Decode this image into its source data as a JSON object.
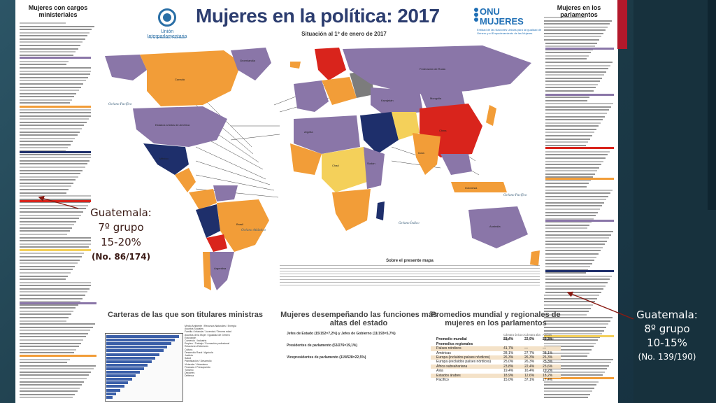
{
  "poster": {
    "title": "Mujeres en la política: 2017",
    "subtitle": "Situación al 1º de enero de 2017",
    "ipu_name": "Unión Interparlamentaria",
    "ipu_sub": "Por la democracia. Para todos.",
    "un_women": "ONU MUJERES",
    "un_women_sub": "Entidad de las Naciones Unidas para la Igualdad de Género y el Empoderamiento de las Mujeres",
    "left_column_title": "Mujeres con cargos ministeriales",
    "right_column_title": "Mujeres en los parlamentos",
    "map_note_title": "Sobre el presente mapa",
    "bottom_left_title": "Carteras de las que son titulares ministras",
    "bottom_mid_title": "Mujeres desempeñando las funciones más altas del estado",
    "bottom_right_title": "Promedios mundial y regionales de mujeres en los parlamentos",
    "heads_of_state": "Jefes de Estado (15/152=7,2%) y Jefes de Gobierno (11/193=5,7%)",
    "speakers": "Presidentes de parlamento (53/276=19,1%)",
    "deputy_speakers": "Vicepresidentes de parlamento (119/528=22,5%)",
    "portfolios": [
      "Medio Ambiente / Recursos Naturales / Energía",
      "Asuntos Sociales",
      "Familia / Infancia / Juventud / Tercera edad",
      "Asuntos de la Mujer / Igualdad de Género",
      "Educación",
      "Comercio / Industria",
      "Empleo / Trabajo / Formación profesional",
      "Relaciones Exteriores",
      "Cultura",
      "Desarrollo Rural / Agrícola",
      "Justicia",
      "Salud",
      "Planificación / Desarrollo",
      "Vivienda / Urbanismo",
      "Finanzas / Presupuesto",
      "Turismo",
      "Deportes",
      "Defensa"
    ],
    "avg_header": [
      "",
      "Cámara única o baja",
      "Cámara alta",
      "Ambas cámaras"
    ],
    "avg_rows": [
      {
        "name": "Promedio mundial",
        "a": "23,4%",
        "b": "22,9%",
        "c": "23,3%",
        "style": "bold"
      },
      {
        "name": "Promedios regionales",
        "a": "",
        "b": "",
        "c": "",
        "style": "bold"
      },
      {
        "name": "Países nórdicos",
        "a": "41,7%",
        "b": "—",
        "c": "—",
        "style": "region"
      },
      {
        "name": "Américas",
        "a": "28,1%",
        "b": "27,7%",
        "c": "28,1%",
        "style": ""
      },
      {
        "name": "Europa (incluidos países nórdicos)",
        "a": "26,3%",
        "b": "26,3%",
        "c": "26,3%",
        "style": "region"
      },
      {
        "name": "Europa (excluidos países nórdicos)",
        "a": "25,0%",
        "b": "26,3%",
        "c": "25,3%",
        "style": ""
      },
      {
        "name": "África subsahariana",
        "a": "23,8%",
        "b": "22,4%",
        "c": "23,6%",
        "style": "region"
      },
      {
        "name": "Asia",
        "a": "19,4%",
        "b": "16,4%",
        "c": "19,2%",
        "style": ""
      },
      {
        "name": "Estados árabes",
        "a": "18,9%",
        "b": "12,6%",
        "c": "18,2%",
        "style": "region"
      },
      {
        "name": "Pacífico",
        "a": "15,0%",
        "b": "37,1%",
        "c": "17,4%",
        "style": ""
      }
    ],
    "ocean_labels": [
      "Océano Pacífico",
      "Océano Atlántico",
      "Océano Índico",
      "Océano Pacífico"
    ],
    "region_labels": [
      "Canadá",
      "Estados Unidos de América",
      "México",
      "Brasil",
      "Argentina",
      "Federación de Rusia",
      "China",
      "India",
      "Australia",
      "Groenlandia",
      "Mongolia",
      "Argelia",
      "Chad",
      "Sudán",
      "Kazajstán",
      "Indonesia"
    ]
  },
  "callouts": {
    "left": {
      "line1": "Guatemala:",
      "line2": "7º grupo",
      "line3": "15-20%",
      "line4": "(No. 86/174)"
    },
    "right": {
      "line1": "Guatemala:",
      "line2": "8º grupo",
      "line3": "10-15%",
      "line4": "(No. 139/190)"
    }
  },
  "colors": {
    "accent_red": "#b3182b",
    "slide_bg": "#1f3f4d",
    "map_orange": "#f29d38",
    "map_purple": "#8a76a8",
    "map_navy": "#1e2f6b",
    "map_red": "#d9241c",
    "map_yellow": "#f4d05a",
    "map_grey": "#7c7c7c",
    "callout_left": "#3a1a15",
    "callout_right": "#ffffff"
  }
}
